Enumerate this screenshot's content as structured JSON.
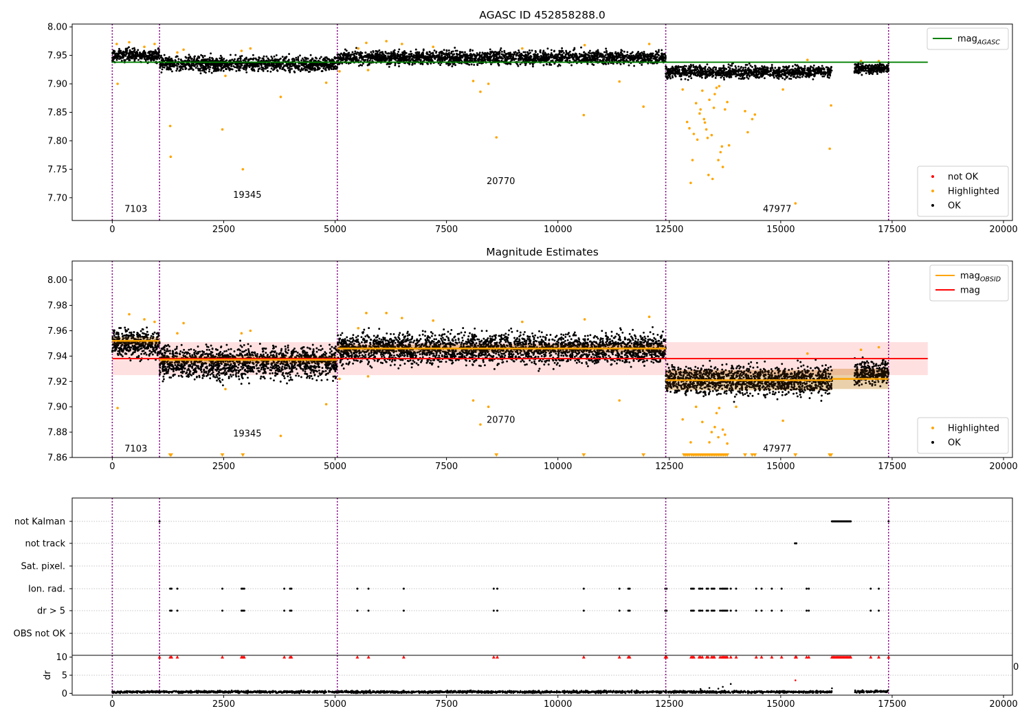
{
  "chart_data": [
    {
      "type": "scatter",
      "title": "AGASC ID 452858288.0",
      "xlim": [
        -900,
        20200
      ],
      "ylim": [
        7.66,
        8.005
      ],
      "x_ticks": [
        0,
        2500,
        5000,
        7500,
        10000,
        12500,
        15000,
        17500,
        20000
      ],
      "x_tick_labels": [
        "0",
        "2500",
        "5000",
        "7500",
        "10000",
        "12500",
        "15000",
        "17500",
        "20000"
      ],
      "y_ticks": [
        7.7,
        7.75,
        7.8,
        7.85,
        7.9,
        7.95,
        8.0
      ],
      "y_tick_labels": [
        "7.70",
        "7.75",
        "7.80",
        "7.85",
        "7.90",
        "7.95",
        "8.00"
      ],
      "obs_boundaries": [
        0,
        1060,
        5050,
        12420,
        17420
      ],
      "obs_labels": [
        {
          "text": "7103",
          "x": 530,
          "y": 7.675
        },
        {
          "text": "19345",
          "x": 3030,
          "y": 7.7
        },
        {
          "text": "20770",
          "x": 8720,
          "y": 7.724
        },
        {
          "text": "47977",
          "x": 14920,
          "y": 7.675
        }
      ],
      "reference_line": {
        "name": "mag_AGASC",
        "value": 7.938,
        "x_range": [
          0,
          18300
        ],
        "color": "#008000"
      },
      "ok_segments": [
        {
          "x0": 0,
          "x1": 1060,
          "mean": 7.95,
          "spread": 0.012
        },
        {
          "x0": 1060,
          "x1": 5050,
          "mean": 7.935,
          "spread": 0.014
        },
        {
          "x0": 5050,
          "x1": 12420,
          "mean": 7.946,
          "spread": 0.013
        },
        {
          "x0": 12420,
          "x1": 16150,
          "mean": 7.921,
          "spread": 0.012
        },
        {
          "x0": 16650,
          "x1": 17420,
          "mean": 7.927,
          "spread": 0.01
        }
      ],
      "highlighted": [
        [
          100,
          7.97
        ],
        [
          120,
          7.9
        ],
        [
          380,
          7.973
        ],
        [
          720,
          7.965
        ],
        [
          950,
          7.97
        ],
        [
          1300,
          7.826
        ],
        [
          1310,
          7.772
        ],
        [
          1460,
          7.955
        ],
        [
          1600,
          7.96
        ],
        [
          2470,
          7.82
        ],
        [
          2540,
          7.914
        ],
        [
          2900,
          7.958
        ],
        [
          2930,
          7.75
        ],
        [
          3100,
          7.962
        ],
        [
          3780,
          7.877
        ],
        [
          4800,
          7.902
        ],
        [
          5100,
          7.922
        ],
        [
          5520,
          7.962
        ],
        [
          5700,
          7.972
        ],
        [
          5740,
          7.924
        ],
        [
          6150,
          7.975
        ],
        [
          6500,
          7.97
        ],
        [
          7200,
          7.965
        ],
        [
          8100,
          7.905
        ],
        [
          8260,
          7.886
        ],
        [
          8440,
          7.9
        ],
        [
          8620,
          7.806
        ],
        [
          9200,
          7.962
        ],
        [
          10580,
          7.845
        ],
        [
          10600,
          7.968
        ],
        [
          11380,
          7.904
        ],
        [
          11920,
          7.86
        ],
        [
          12050,
          7.97
        ],
        [
          12800,
          7.89
        ],
        [
          12900,
          7.833
        ],
        [
          12950,
          7.822
        ],
        [
          12980,
          7.726
        ],
        [
          13020,
          7.766
        ],
        [
          13050,
          7.812
        ],
        [
          13100,
          7.866
        ],
        [
          13130,
          7.802
        ],
        [
          13180,
          7.848
        ],
        [
          13200,
          7.855
        ],
        [
          13240,
          7.888
        ],
        [
          13280,
          7.838
        ],
        [
          13300,
          7.832
        ],
        [
          13330,
          7.82
        ],
        [
          13360,
          7.805
        ],
        [
          13380,
          7.74
        ],
        [
          13400,
          7.872
        ],
        [
          13450,
          7.81
        ],
        [
          13470,
          7.733
        ],
        [
          13500,
          7.858
        ],
        [
          13520,
          7.882
        ],
        [
          13560,
          7.893
        ],
        [
          13600,
          7.766
        ],
        [
          13620,
          7.896
        ],
        [
          13650,
          7.78
        ],
        [
          13680,
          7.79
        ],
        [
          13700,
          7.754
        ],
        [
          13750,
          7.855
        ],
        [
          13800,
          7.868
        ],
        [
          13840,
          7.792
        ],
        [
          14200,
          7.852
        ],
        [
          14260,
          7.815
        ],
        [
          14360,
          7.838
        ],
        [
          14420,
          7.846
        ],
        [
          15050,
          7.89
        ],
        [
          15330,
          7.69
        ],
        [
          15600,
          7.942
        ],
        [
          16100,
          7.786
        ],
        [
          16130,
          7.862
        ],
        [
          16800,
          7.94
        ],
        [
          17200,
          7.94
        ]
      ],
      "legends": [
        {
          "position": "top-right",
          "entries": [
            {
              "label": "mag",
              "subscript": "AGASC",
              "color": "#008000",
              "kind": "line"
            }
          ]
        },
        {
          "position": "bottom-right",
          "entries": [
            {
              "label": "not OK",
              "color": "#ff0000",
              "kind": "dot"
            },
            {
              "label": "Highlighted",
              "color": "#ffa500",
              "kind": "dot"
            },
            {
              "label": "OK",
              "color": "#000000",
              "kind": "dot"
            }
          ]
        }
      ]
    },
    {
      "type": "scatter",
      "title": "Magnitude Estimates",
      "xlim": [
        -900,
        20200
      ],
      "ylim": [
        7.86,
        8.015
      ],
      "x_ticks": [
        0,
        2500,
        5000,
        7500,
        10000,
        12500,
        15000,
        17500,
        20000
      ],
      "x_tick_labels": [
        "0",
        "2500",
        "5000",
        "7500",
        "10000",
        "12500",
        "15000",
        "17500",
        "20000"
      ],
      "y_ticks": [
        7.86,
        7.88,
        7.9,
        7.92,
        7.94,
        7.96,
        7.98,
        8.0
      ],
      "y_tick_labels": [
        "7.86",
        "7.88",
        "7.90",
        "7.92",
        "7.94",
        "7.96",
        "7.98",
        "8.00"
      ],
      "obs_boundaries": [
        0,
        1060,
        5050,
        12420,
        17420
      ],
      "obs_labels": [
        {
          "text": "7103",
          "x": 530,
          "y": 7.8645
        },
        {
          "text": "19345",
          "x": 3030,
          "y": 7.8765
        },
        {
          "text": "20770",
          "x": 8720,
          "y": 7.8875
        },
        {
          "text": "47977",
          "x": 14920,
          "y": 7.8645
        }
      ],
      "mag_line": {
        "name": "mag",
        "value": 7.938,
        "band": [
          7.925,
          7.951
        ],
        "x_range": [
          0,
          18300
        ],
        "color": "#ff0000"
      },
      "mag_obsid": [
        {
          "x0": 0,
          "x1": 1060,
          "value": 7.952,
          "band": [
            7.949,
            7.955
          ]
        },
        {
          "x0": 1060,
          "x1": 5050,
          "value": 7.937,
          "band": [
            7.934,
            7.94
          ]
        },
        {
          "x0": 5050,
          "x1": 12420,
          "value": 7.946,
          "band": [
            7.943,
            7.949
          ]
        },
        {
          "x0": 12420,
          "x1": 16150,
          "value": 7.921,
          "band": [
            7.913,
            7.929
          ]
        },
        {
          "x0": 16150,
          "x1": 17420,
          "value": 7.922,
          "band": [
            7.914,
            7.93
          ]
        }
      ],
      "ok_segments": [
        {
          "x0": 0,
          "x1": 1060,
          "mean": 7.95,
          "spread": 0.012
        },
        {
          "x0": 1060,
          "x1": 5050,
          "mean": 7.935,
          "spread": 0.014
        },
        {
          "x0": 5050,
          "x1": 12420,
          "mean": 7.946,
          "spread": 0.013
        },
        {
          "x0": 12420,
          "x1": 16150,
          "mean": 7.921,
          "spread": 0.012
        },
        {
          "x0": 16650,
          "x1": 17420,
          "mean": 7.927,
          "spread": 0.01
        }
      ],
      "highlighted": [
        [
          120,
          7.899
        ],
        [
          380,
          7.973
        ],
        [
          720,
          7.969
        ],
        [
          950,
          7.967
        ],
        [
          1460,
          7.958
        ],
        [
          1600,
          7.966
        ],
        [
          2540,
          7.914
        ],
        [
          2900,
          7.958
        ],
        [
          3100,
          7.96
        ],
        [
          3780,
          7.877
        ],
        [
          4800,
          7.902
        ],
        [
          5100,
          7.922
        ],
        [
          5520,
          7.962
        ],
        [
          5700,
          7.974
        ],
        [
          5740,
          7.924
        ],
        [
          6150,
          7.974
        ],
        [
          6500,
          7.97
        ],
        [
          7200,
          7.968
        ],
        [
          8100,
          7.905
        ],
        [
          8260,
          7.886
        ],
        [
          8440,
          7.9
        ],
        [
          9200,
          7.967
        ],
        [
          10600,
          7.969
        ],
        [
          11380,
          7.905
        ],
        [
          12050,
          7.971
        ],
        [
          12800,
          7.89
        ],
        [
          12980,
          7.872
        ],
        [
          13100,
          7.9
        ],
        [
          13240,
          7.888
        ],
        [
          13400,
          7.872
        ],
        [
          13450,
          7.88
        ],
        [
          13520,
          7.884
        ],
        [
          13560,
          7.895
        ],
        [
          13600,
          7.876
        ],
        [
          13620,
          7.899
        ],
        [
          13700,
          7.882
        ],
        [
          13750,
          7.878
        ],
        [
          13800,
          7.871
        ],
        [
          14000,
          7.9
        ],
        [
          15050,
          7.889
        ],
        [
          15600,
          7.942
        ],
        [
          16800,
          7.945
        ],
        [
          17200,
          7.947
        ]
      ],
      "below_axis_markers": [
        1300,
        1320,
        2470,
        2930,
        8620,
        10580,
        11920,
        12830,
        12870,
        12910,
        12950,
        13000,
        13040,
        13080,
        13120,
        13160,
        13200,
        13240,
        13280,
        13320,
        13360,
        13400,
        13440,
        13480,
        13520,
        13560,
        13600,
        13640,
        13680,
        13720,
        13760,
        13800,
        14200,
        14360,
        14420,
        15330,
        16100,
        16130
      ],
      "legends": [
        {
          "position": "top-right",
          "entries": [
            {
              "label": "mag",
              "subscript": "OBSID",
              "color": "#ffa500",
              "kind": "line"
            },
            {
              "label": "mag",
              "color": "#ff0000",
              "kind": "line"
            }
          ]
        },
        {
          "position": "bottom-right",
          "entries": [
            {
              "label": "Highlighted",
              "color": "#ffa500",
              "kind": "dot"
            },
            {
              "label": "OK",
              "color": "#000000",
              "kind": "dot"
            }
          ]
        }
      ]
    },
    {
      "type": "scatter",
      "title": "",
      "xlim": [
        -900,
        20200
      ],
      "x_ticks": [
        0,
        2500,
        5000,
        7500,
        10000,
        12500,
        15000,
        17500,
        20000
      ],
      "x_tick_labels": [
        "0",
        "2500",
        "5000",
        "7500",
        "10000",
        "12500",
        "15000",
        "17500",
        "20000"
      ],
      "obs_boundaries": [
        0,
        1060,
        5050,
        12420,
        17420
      ],
      "flag_rows": [
        "not Kalman",
        "not track",
        "Sat. pixel.",
        "Ion. rad.",
        "dr > 5",
        "OBS not OK"
      ],
      "flag_points": {
        "not Kalman": [
          1060,
          16150,
          16170,
          16190,
          16210,
          16230,
          16250,
          16270,
          16290,
          16310,
          16330,
          16350,
          16370,
          16390,
          16410,
          16430,
          16450,
          16470,
          16490,
          16510,
          16530,
          16550,
          16570,
          17420
        ],
        "not track": [
          15320,
          15350
        ],
        "Sat. pixel.": [],
        "Ion. rad.": [
          1300,
          1330,
          1460,
          2470,
          2900,
          2930,
          2960,
          3860,
          3990,
          4020,
          5500,
          5750,
          6540,
          8560,
          8640,
          10580,
          11380,
          11580,
          11610,
          12410,
          12440,
          12990,
          13020,
          13050,
          13170,
          13200,
          13240,
          13340,
          13370,
          13450,
          13480,
          13510,
          13640,
          13680,
          13710,
          13740,
          13770,
          13800,
          13880,
          14000,
          14450,
          14570,
          14800,
          15020,
          15580,
          15630,
          17020,
          17200
        ],
        "dr > 5": [
          1300,
          1330,
          1460,
          2470,
          2900,
          2930,
          2960,
          3860,
          3990,
          4020,
          5500,
          5750,
          6540,
          8560,
          8640,
          10580,
          11380,
          11580,
          11610,
          12410,
          12440,
          12990,
          13020,
          13050,
          13170,
          13200,
          13240,
          13340,
          13370,
          13450,
          13480,
          13510,
          13640,
          13680,
          13710,
          13740,
          13770,
          13800,
          13880,
          14000,
          14450,
          14570,
          14800,
          15020,
          15580,
          15630,
          17020,
          17200
        ],
        "OBS not OK": []
      }
    },
    {
      "type": "scatter",
      "title": "",
      "ylabel": "dr",
      "xlim": [
        -900,
        20200
      ],
      "ylim": [
        -0.5,
        10.5
      ],
      "x_ticks": [
        0,
        2500,
        5000,
        7500,
        10000,
        12500,
        15000,
        17500,
        20000
      ],
      "x_tick_labels": [
        "0",
        "2500",
        "5000",
        "7500",
        "10000",
        "12500",
        "15000",
        "17500",
        "20000"
      ],
      "y_ticks": [
        0,
        5,
        10
      ],
      "y_tick_labels": [
        "0",
        "5",
        "10"
      ],
      "stray_tick_label": "0",
      "obs_boundaries": [
        0,
        1060,
        5050,
        12420,
        17420
      ],
      "dr_segments": [
        {
          "x0": 0,
          "x1": 16150,
          "mean": 0.4,
          "spread": 0.3
        },
        {
          "x0": 16650,
          "x1": 17420,
          "mean": 0.5,
          "spread": 0.3
        }
      ],
      "dr_excursions": [
        [
          13200,
          1.2
        ],
        [
          13400,
          1.5
        ],
        [
          13600,
          1.3
        ],
        [
          13700,
          1.8
        ],
        [
          13880,
          2.6
        ],
        [
          16150,
          1.4
        ],
        [
          15330,
          3.6
        ]
      ],
      "clipped_points": [
        1060,
        1300,
        1330,
        1460,
        2470,
        2900,
        2930,
        2960,
        3860,
        3990,
        4020,
        5500,
        5750,
        6540,
        8560,
        8640,
        10580,
        11380,
        11580,
        11610,
        12410,
        12440,
        12990,
        13020,
        13050,
        13170,
        13200,
        13240,
        13340,
        13370,
        13450,
        13480,
        13510,
        13640,
        13680,
        13710,
        13740,
        13770,
        13800,
        13880,
        14000,
        14450,
        14570,
        14800,
        15020,
        15330,
        15350,
        15580,
        15630,
        16150,
        16180,
        16210,
        16240,
        16270,
        16300,
        16330,
        16360,
        16390,
        16420,
        16450,
        16480,
        16510,
        16540,
        16570,
        17020,
        17200,
        17420
      ]
    }
  ]
}
